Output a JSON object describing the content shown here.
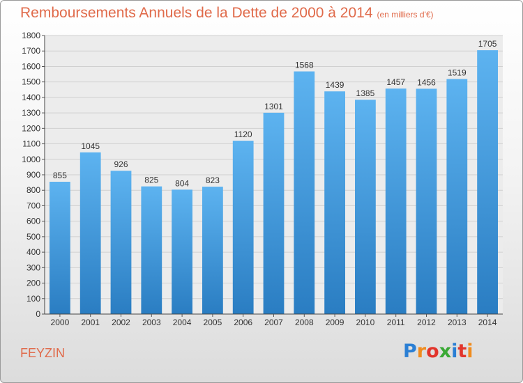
{
  "title": "Remboursements Annuels de la Dette de 2000 à 2014",
  "subtitle": "(en milliers d'€)",
  "location": "FEYZIN",
  "logo": {
    "letters": [
      "P",
      "r",
      "o",
      "x",
      "i",
      "t",
      "i"
    ],
    "colors": [
      "#2b7fd4",
      "#f08c1e",
      "#e2352c",
      "#3aa935",
      "#2b7fd4",
      "#e2352c",
      "#f08c1e"
    ]
  },
  "chart_data": {
    "type": "bar",
    "categories": [
      "2000",
      "2001",
      "2002",
      "2003",
      "2004",
      "2005",
      "2006",
      "2007",
      "2008",
      "2009",
      "2010",
      "2011",
      "2012",
      "2013",
      "2014"
    ],
    "values": [
      855,
      1045,
      926,
      825,
      804,
      823,
      1120,
      1301,
      1568,
      1439,
      1385,
      1457,
      1456,
      1519,
      1705
    ],
    "ylim": [
      0,
      1800
    ],
    "yticks": [
      0,
      100,
      200,
      300,
      400,
      500,
      600,
      700,
      800,
      900,
      1000,
      1100,
      1200,
      1300,
      1400,
      1500,
      1600,
      1700,
      1800
    ],
    "grid": true,
    "bar_color": "#3d9ee6"
  }
}
